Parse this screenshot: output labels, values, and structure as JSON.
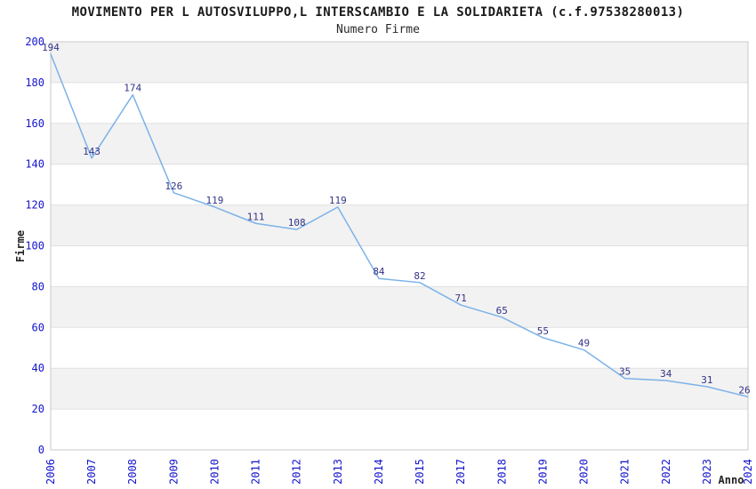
{
  "chart_data": {
    "type": "line",
    "title": "MOVIMENTO PER L AUTOSVILUPPO,L INTERSCAMBIO E LA SOLIDARIETA (c.f.97538280013)",
    "subtitle": "Numero Firme",
    "xlabel": "Anno",
    "ylabel": "Firme",
    "categories": [
      "2006",
      "2007",
      "2008",
      "2009",
      "2010",
      "2011",
      "2012",
      "2013",
      "2014",
      "2015",
      "2017",
      "2018",
      "2019",
      "2020",
      "2021",
      "2022",
      "2023",
      "2024"
    ],
    "values": [
      194,
      143,
      174,
      126,
      119,
      111,
      108,
      119,
      84,
      82,
      71,
      65,
      55,
      49,
      35,
      34,
      31,
      26
    ],
    "data_labels_visible": true,
    "ylim": [
      0,
      200
    ],
    "ytick_step": 20,
    "grid": true,
    "bands_alternating": true,
    "legend": "none",
    "colors": {
      "line": "#7cb2e8",
      "data_label": "#333388",
      "tick_label": "#1414cc",
      "axis_title": "#222222",
      "band_gray": "#f2f2f2",
      "band_white": "#ffffff",
      "gridline": "#e0e0e0",
      "plot_border": "#c9c9c9",
      "title": "#1a1a1a",
      "background": "#ffffff"
    }
  }
}
